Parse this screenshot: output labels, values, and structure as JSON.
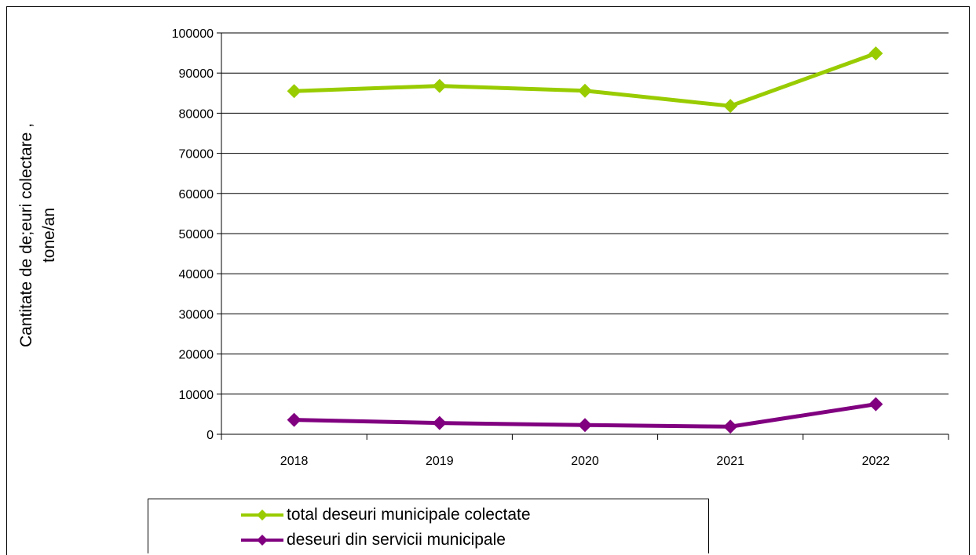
{
  "chart_data": {
    "type": "line",
    "categories": [
      "2018",
      "2019",
      "2020",
      "2021",
      "2022"
    ],
    "ylabel_lines": [
      "Cantitate de de;euri colectare ,",
      "tone/an"
    ],
    "ylim": [
      0,
      100000
    ],
    "yticks": [
      0,
      10000,
      20000,
      30000,
      40000,
      50000,
      60000,
      70000,
      80000,
      90000,
      100000
    ],
    "grid": true,
    "legend_position": "bottom",
    "series": [
      {
        "name": "total deseuri municipale colectate",
        "color": "#99cc00",
        "values": [
          85500,
          86800,
          85600,
          81800,
          94900
        ]
      },
      {
        "name": "deseuri din servicii municipale",
        "color": "#800080",
        "values": [
          3600,
          2800,
          2300,
          1900,
          7500
        ]
      }
    ]
  }
}
